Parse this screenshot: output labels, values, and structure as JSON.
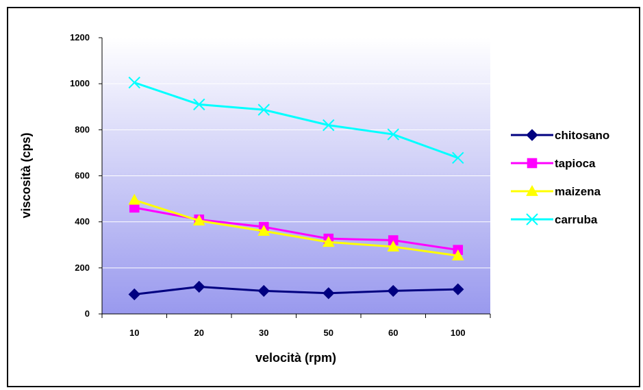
{
  "chart_data": {
    "type": "line",
    "categories": [
      "10",
      "20",
      "30",
      "50",
      "60",
      "100"
    ],
    "xlabel": "velocità (rpm)",
    "ylabel": "viscosità (cps)",
    "ylim": [
      0,
      1200
    ],
    "yticks": [
      0,
      200,
      400,
      600,
      800,
      1000,
      1200
    ],
    "grid": true,
    "legend_position": "right",
    "series": [
      {
        "name": "chitosano",
        "color": "#000080",
        "marker": "diamond",
        "values": [
          85,
          118,
          100,
          90,
          100,
          107
        ]
      },
      {
        "name": "tapioca",
        "color": "#FF00FF",
        "marker": "square",
        "values": [
          462,
          410,
          378,
          327,
          320,
          278
        ]
      },
      {
        "name": "maizena",
        "color": "#FFFF00",
        "marker": "triangle",
        "values": [
          495,
          405,
          360,
          312,
          292,
          253
        ]
      },
      {
        "name": "carruba",
        "color": "#00FFFF",
        "marker": "x",
        "values": [
          1005,
          910,
          887,
          820,
          780,
          678
        ]
      }
    ]
  }
}
